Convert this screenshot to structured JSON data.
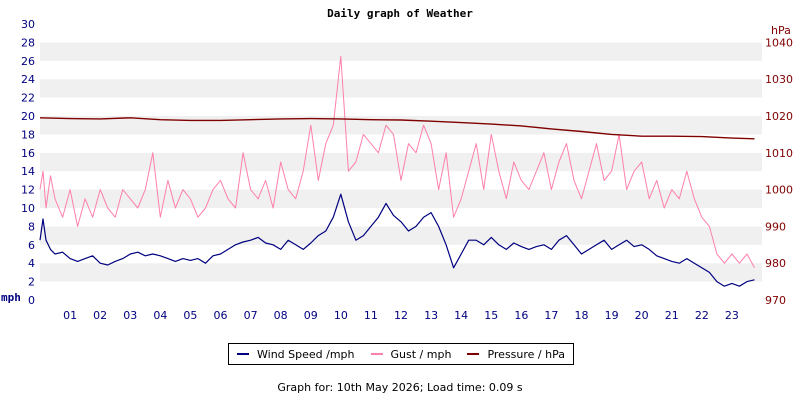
{
  "chart_data": {
    "type": "line",
    "title": "Daily graph of Weather",
    "left_axis": {
      "unit": "mph",
      "ylim": [
        0,
        30
      ],
      "ticks": [
        "0",
        "2",
        "4",
        "6",
        "8",
        "10",
        "12",
        "14",
        "16",
        "18",
        "20",
        "22",
        "24",
        "26",
        "28",
        "30"
      ]
    },
    "right_axis": {
      "unit": "hPa",
      "ylim": [
        970,
        1045
      ],
      "ticks": [
        "970",
        "980",
        "990",
        "1000",
        "1010",
        "1020",
        "1030",
        "1040"
      ]
    },
    "x_ticks": [
      "01",
      "02",
      "03",
      "04",
      "05",
      "06",
      "07",
      "08",
      "09",
      "10",
      "11",
      "12",
      "13",
      "14",
      "15",
      "16",
      "17",
      "18",
      "19",
      "20",
      "21",
      "22",
      "23"
    ],
    "xlim": [
      0,
      24
    ],
    "grid": "horizontal alternating bands",
    "legend_position": "bottom",
    "series": [
      {
        "name": "Wind Speed /mph",
        "axis": "left",
        "color": "#000080",
        "x": [
          0,
          0.1,
          0.2,
          0.35,
          0.5,
          0.75,
          1,
          1.25,
          1.5,
          1.75,
          2,
          2.25,
          2.5,
          2.75,
          3,
          3.25,
          3.5,
          3.75,
          4,
          4.25,
          4.5,
          4.75,
          5,
          5.25,
          5.5,
          5.75,
          6,
          6.25,
          6.5,
          6.75,
          7,
          7.25,
          7.5,
          7.75,
          8,
          8.25,
          8.5,
          8.75,
          9,
          9.25,
          9.5,
          9.75,
          10,
          10.25,
          10.5,
          10.75,
          11,
          11.25,
          11.5,
          11.75,
          12,
          12.25,
          12.5,
          12.75,
          13,
          13.25,
          13.5,
          13.75,
          14,
          14.25,
          14.5,
          14.75,
          15,
          15.25,
          15.5,
          15.75,
          16,
          16.25,
          16.5,
          16.75,
          17,
          17.25,
          17.5,
          17.75,
          18,
          18.25,
          18.5,
          18.75,
          19,
          19.25,
          19.5,
          19.75,
          20,
          20.25,
          20.5,
          20.75,
          21,
          21.25,
          21.5,
          21.75,
          22,
          22.25,
          22.5,
          22.75,
          23,
          23.25,
          23.5,
          23.75
        ],
        "values": [
          6.5,
          8.8,
          6.5,
          5.5,
          5,
          5.2,
          4.5,
          4.2,
          4.5,
          4.8,
          4,
          3.8,
          4.2,
          4.5,
          5,
          5.2,
          4.8,
          5,
          4.8,
          4.5,
          4.2,
          4.5,
          4.3,
          4.5,
          4,
          4.8,
          5,
          5.5,
          6,
          6.3,
          6.5,
          6.8,
          6.2,
          6,
          5.5,
          6.5,
          6,
          5.5,
          6.2,
          7,
          7.5,
          9,
          11.5,
          8.5,
          6.5,
          7,
          8,
          9,
          10.5,
          9.2,
          8.5,
          7.5,
          8,
          9,
          9.5,
          8,
          6,
          3.5,
          5,
          6.5,
          6.5,
          6,
          6.8,
          6,
          5.5,
          6.2,
          5.8,
          5.5,
          5.8,
          6,
          5.5,
          6.5,
          7,
          6,
          5,
          5.5,
          6,
          6.5,
          5.5,
          6,
          6.5,
          5.8,
          6,
          5.5,
          4.8,
          4.5,
          4.2,
          4,
          4.5,
          4,
          3.5,
          3,
          2,
          1.5,
          1.8,
          1.5,
          2,
          2.2
        ]
      },
      {
        "name": "Gust / mph",
        "axis": "left",
        "color": "#ff80a8",
        "x": [
          0,
          0.1,
          0.2,
          0.35,
          0.5,
          0.75,
          1,
          1.25,
          1.5,
          1.75,
          2,
          2.25,
          2.5,
          2.75,
          3,
          3.25,
          3.5,
          3.75,
          4,
          4.25,
          4.5,
          4.75,
          5,
          5.25,
          5.5,
          5.75,
          6,
          6.25,
          6.5,
          6.75,
          7,
          7.25,
          7.5,
          7.75,
          8,
          8.25,
          8.5,
          8.75,
          9,
          9.25,
          9.5,
          9.75,
          10,
          10.25,
          10.5,
          10.75,
          11,
          11.25,
          11.5,
          11.75,
          12,
          12.25,
          12.5,
          12.75,
          13,
          13.25,
          13.5,
          13.75,
          14,
          14.25,
          14.5,
          14.75,
          15,
          15.25,
          15.5,
          15.75,
          16,
          16.25,
          16.5,
          16.75,
          17,
          17.25,
          17.5,
          17.75,
          18,
          18.25,
          18.5,
          18.75,
          19,
          19.25,
          19.5,
          19.75,
          20,
          20.25,
          20.5,
          20.75,
          21,
          21.25,
          21.5,
          21.75,
          22,
          22.25,
          22.5,
          22.75,
          23,
          23.25,
          23.5,
          23.75
        ],
        "values": [
          12,
          14,
          10,
          13.5,
          11,
          9,
          12,
          8,
          11,
          9,
          12,
          10,
          9,
          12,
          11,
          10,
          12,
          16,
          9,
          13,
          10,
          12,
          11,
          9,
          10,
          12,
          13,
          11,
          10,
          16,
          12,
          11,
          13,
          10,
          15,
          12,
          11,
          14,
          19,
          13,
          17,
          19,
          26.5,
          14,
          15,
          18,
          17,
          16,
          19,
          18,
          13,
          17,
          16,
          19,
          17,
          12,
          16,
          9,
          11,
          14,
          17,
          12,
          18,
          14,
          11,
          15,
          13,
          12,
          14,
          16,
          12,
          15,
          17,
          13,
          11,
          14,
          17,
          13,
          14,
          18,
          12,
          14,
          15,
          11,
          13,
          10,
          12,
          11,
          14,
          11,
          9,
          8,
          5,
          4,
          5,
          4,
          5,
          3.5
        ]
      },
      {
        "name": "Pressure / hPa",
        "axis": "right",
        "color": "#800000",
        "x": [
          0,
          1,
          2,
          3,
          4,
          5,
          6,
          7,
          8,
          9,
          10,
          11,
          12,
          13,
          14,
          15,
          16,
          17,
          18,
          19,
          20,
          21,
          22,
          23,
          23.75
        ],
        "values": [
          1019.5,
          1019.3,
          1019.2,
          1019.5,
          1019,
          1018.8,
          1018.8,
          1019,
          1019.2,
          1019.3,
          1019.2,
          1019,
          1018.9,
          1018.6,
          1018.2,
          1017.8,
          1017.3,
          1016.5,
          1015.8,
          1015,
          1014.5,
          1014.5,
          1014.4,
          1014,
          1013.8
        ]
      }
    ]
  },
  "footer": "Graph for: 10th May 2026; Load time: 0.09 s"
}
